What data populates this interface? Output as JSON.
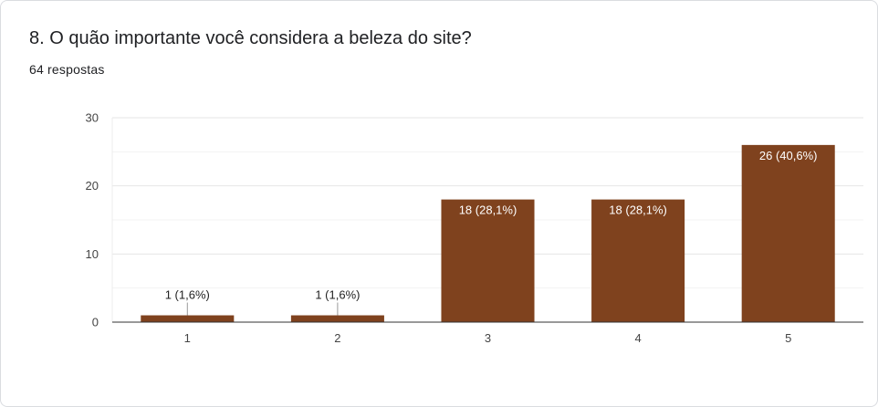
{
  "question": {
    "title": "8. O quão importante você considera a beleza do site?",
    "responses": "64 respostas"
  },
  "colors": {
    "bar": "#7f421e",
    "grid": "#ebebeb",
    "axis": "#333333"
  },
  "chart_data": {
    "type": "bar",
    "title": "8. O quão importante você considera a beleza do site?",
    "subtitle": "64 respostas",
    "categories": [
      "1",
      "2",
      "3",
      "4",
      "5"
    ],
    "values": [
      1,
      1,
      18,
      18,
      26
    ],
    "data_labels": [
      "1 (1,6%)",
      "1 (1,6%)",
      "18 (28,1%)",
      "18 (28,1%)",
      "26 (40,6%)"
    ],
    "xlabel": "",
    "ylabel": "",
    "ylim": [
      0,
      30
    ],
    "yticks": [
      0,
      10,
      20,
      30
    ],
    "grid": true,
    "legend": "none"
  }
}
